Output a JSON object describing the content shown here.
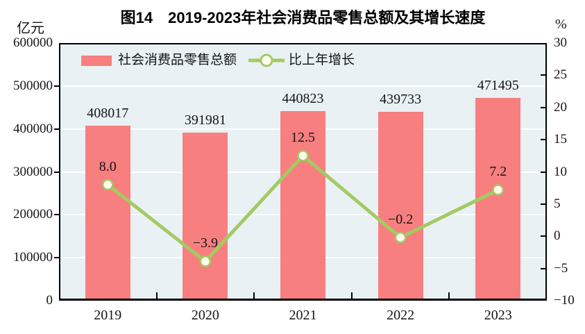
{
  "chart_data": {
    "type": "combo-bar-line",
    "title": "图14　2019-2023年社会消费品零售总额及其增长速度",
    "categories": [
      "2019",
      "2020",
      "2021",
      "2022",
      "2023"
    ],
    "series": [
      {
        "name": "社会消费品零售总额",
        "type": "bar",
        "axis": "left",
        "unit": "亿元",
        "color": "#f87f7f",
        "values": [
          408017,
          391981,
          440823,
          439733,
          471495
        ]
      },
      {
        "name": "比上年增长",
        "type": "line",
        "axis": "right",
        "unit": "%",
        "color": "#a3ca63",
        "marker_fill": "#fffdf0",
        "values": [
          8.0,
          -3.9,
          12.5,
          -0.2,
          7.2
        ]
      }
    ],
    "left_axis": {
      "unit": "亿元",
      "min": 0,
      "max": 600000,
      "step": 100000
    },
    "right_axis": {
      "unit": "%",
      "min": -10,
      "max": 30,
      "step": 5
    },
    "grid": {
      "horizontal": true,
      "color": "#ffffff",
      "aligned_to": "left_axis_ticks"
    },
    "plot_background": "#e9f1f4",
    "axis_color": "#000000",
    "text_color": "#151515",
    "legend_position": "top-left-inside"
  }
}
